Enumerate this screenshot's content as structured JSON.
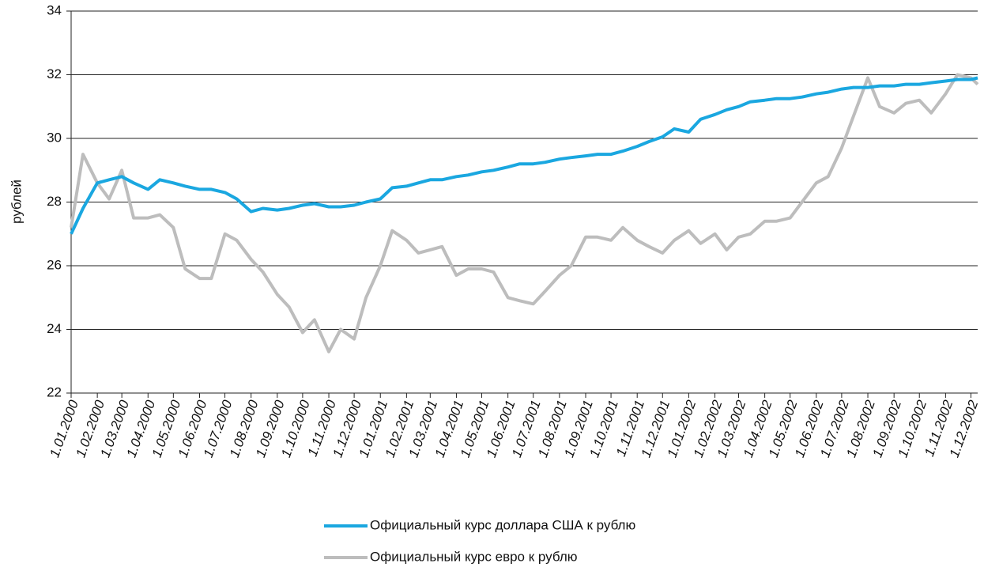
{
  "chart_data": {
    "type": "line",
    "y_label": "рублей",
    "x": [
      "1.01.2000",
      "15.01.2000",
      "1.02.2000",
      "15.02.2000",
      "1.03.2000",
      "15.03.2000",
      "1.04.2000",
      "15.04.2000",
      "1.05.2000",
      "15.05.2000",
      "1.06.2000",
      "15.06.2000",
      "1.07.2000",
      "15.07.2000",
      "1.08.2000",
      "15.08.2000",
      "1.09.2000",
      "15.09.2000",
      "1.10.2000",
      "15.10.2000",
      "1.11.2000",
      "15.11.2000",
      "1.12.2000",
      "15.12.2000",
      "1.01.2001",
      "15.01.2001",
      "1.02.2001",
      "15.02.2001",
      "1.03.2001",
      "15.03.2001",
      "1.04.2001",
      "15.04.2001",
      "1.05.2001",
      "15.05.2001",
      "1.06.2001",
      "15.06.2001",
      "1.07.2001",
      "15.07.2001",
      "1.08.2001",
      "15.08.2001",
      "1.09.2001",
      "15.09.2001",
      "1.10.2001",
      "15.10.2001",
      "1.11.2001",
      "15.11.2001",
      "1.12.2001",
      "15.12.2001",
      "1.01.2002",
      "15.01.2002",
      "1.02.2002",
      "15.02.2002",
      "1.03.2002",
      "15.03.2002",
      "1.04.2002",
      "15.04.2002",
      "1.05.2002",
      "15.05.2002",
      "1.06.2002",
      "15.06.2002",
      "1.07.2002",
      "15.07.2002",
      "1.08.2002",
      "15.08.2002",
      "1.09.2002",
      "15.09.2002",
      "1.10.2002",
      "15.10.2002",
      "1.11.2002",
      "15.11.2002",
      "1.12.2002",
      "9.12.2002"
    ],
    "series": [
      {
        "name": "Официальный курс доллара США к рублю",
        "color": "#1aa7e0",
        "values": [
          27.0,
          27.8,
          28.6,
          28.7,
          28.8,
          28.6,
          28.4,
          28.7,
          28.6,
          28.5,
          28.4,
          28.4,
          28.3,
          28.1,
          27.7,
          27.8,
          27.75,
          27.8,
          27.9,
          27.95,
          27.85,
          27.85,
          27.9,
          28.0,
          28.1,
          28.45,
          28.5,
          28.6,
          28.7,
          28.7,
          28.8,
          28.85,
          28.95,
          29.0,
          29.1,
          29.2,
          29.2,
          29.25,
          29.35,
          29.4,
          29.45,
          29.5,
          29.5,
          29.6,
          29.75,
          29.9,
          30.05,
          30.3,
          30.2,
          30.6,
          30.75,
          30.9,
          31.0,
          31.15,
          31.2,
          31.25,
          31.25,
          31.3,
          31.4,
          31.45,
          31.55,
          31.6,
          31.6,
          31.65,
          31.65,
          31.7,
          31.7,
          31.75,
          31.8,
          31.85,
          31.85,
          31.9
        ]
      },
      {
        "name": "Официальный курс евро к рублю",
        "color": "#bdbdbd",
        "values": [
          27.2,
          29.5,
          28.6,
          28.1,
          29.0,
          27.5,
          27.5,
          27.6,
          27.2,
          25.9,
          25.6,
          25.6,
          27.0,
          26.8,
          26.2,
          25.8,
          25.1,
          24.7,
          23.9,
          24.3,
          23.3,
          24.0,
          23.7,
          25.0,
          26.0,
          27.1,
          26.8,
          26.4,
          26.5,
          26.6,
          25.7,
          25.9,
          25.9,
          25.8,
          25.0,
          24.9,
          24.8,
          25.2,
          25.7,
          26.0,
          26.9,
          26.9,
          26.8,
          27.2,
          26.8,
          26.6,
          26.4,
          26.8,
          27.1,
          26.7,
          27.0,
          26.5,
          26.9,
          27.0,
          27.4,
          27.4,
          27.5,
          28.0,
          28.6,
          28.8,
          29.7,
          30.7,
          31.9,
          31.0,
          30.8,
          31.1,
          31.2,
          30.8,
          31.4,
          32.0,
          31.9,
          31.7
        ]
      }
    ],
    "xlim": [
      "1.01.2000",
      "9.12.2002"
    ],
    "xticks": [
      "1.01.2000",
      "1.02.2000",
      "1.03.2000",
      "1.04.2000",
      "1.05.2000",
      "1.06.2000",
      "1.07.2000",
      "1.08.2000",
      "1.09.2000",
      "1.10.2000",
      "1.11.2000",
      "1.12.2000",
      "1.01.2001",
      "1.02.2001",
      "1.03.2001",
      "1.04.2001",
      "1.05.2001",
      "1.06.2001",
      "1.07.2001",
      "1.08.2001",
      "1.09.2001",
      "1.10.2001",
      "1.11.2001",
      "1.12.2001",
      "1.01.2002",
      "1.02.2002",
      "1.03.2002",
      "1.04.2002",
      "1.05.2002",
      "1.06.2002",
      "1.07.2002",
      "1.08.2002",
      "1.09.2002",
      "1.10.2002",
      "1.11.2002",
      "1.12.2002"
    ],
    "ylim": [
      22,
      34
    ],
    "yticks": [
      22,
      24,
      26,
      28,
      30,
      32,
      34
    ],
    "grid": true
  }
}
